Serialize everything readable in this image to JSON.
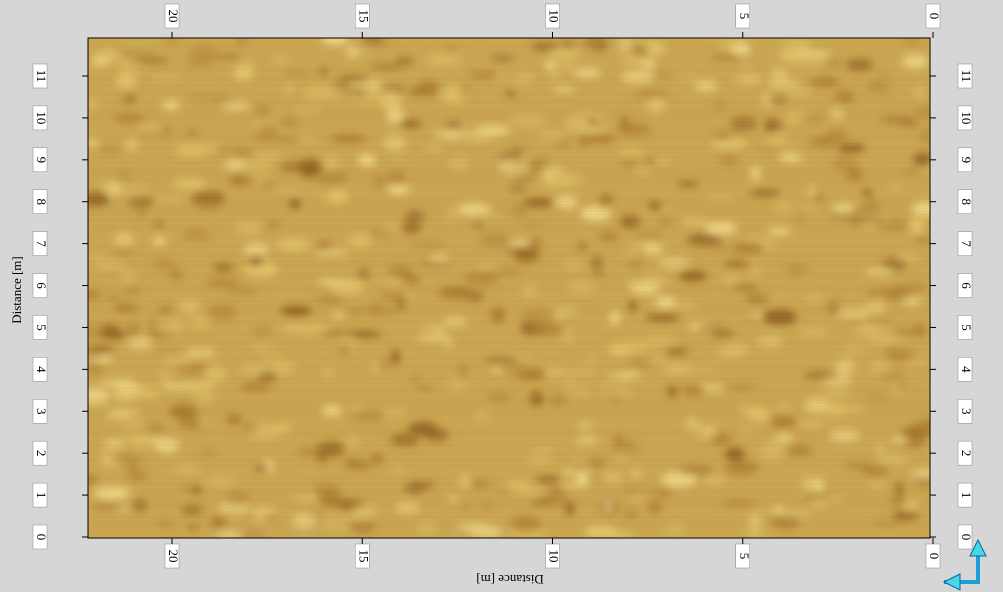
{
  "x_axis": {
    "ticks": [
      "0",
      "5",
      "10",
      "15",
      "20"
    ],
    "title": "Distance [m]"
  },
  "y_axis": {
    "ticks": [
      "0",
      "1",
      "2",
      "3",
      "4",
      "5",
      "6",
      "7",
      "8",
      "9",
      "10",
      "11"
    ],
    "title": "Distance [m]"
  }
}
